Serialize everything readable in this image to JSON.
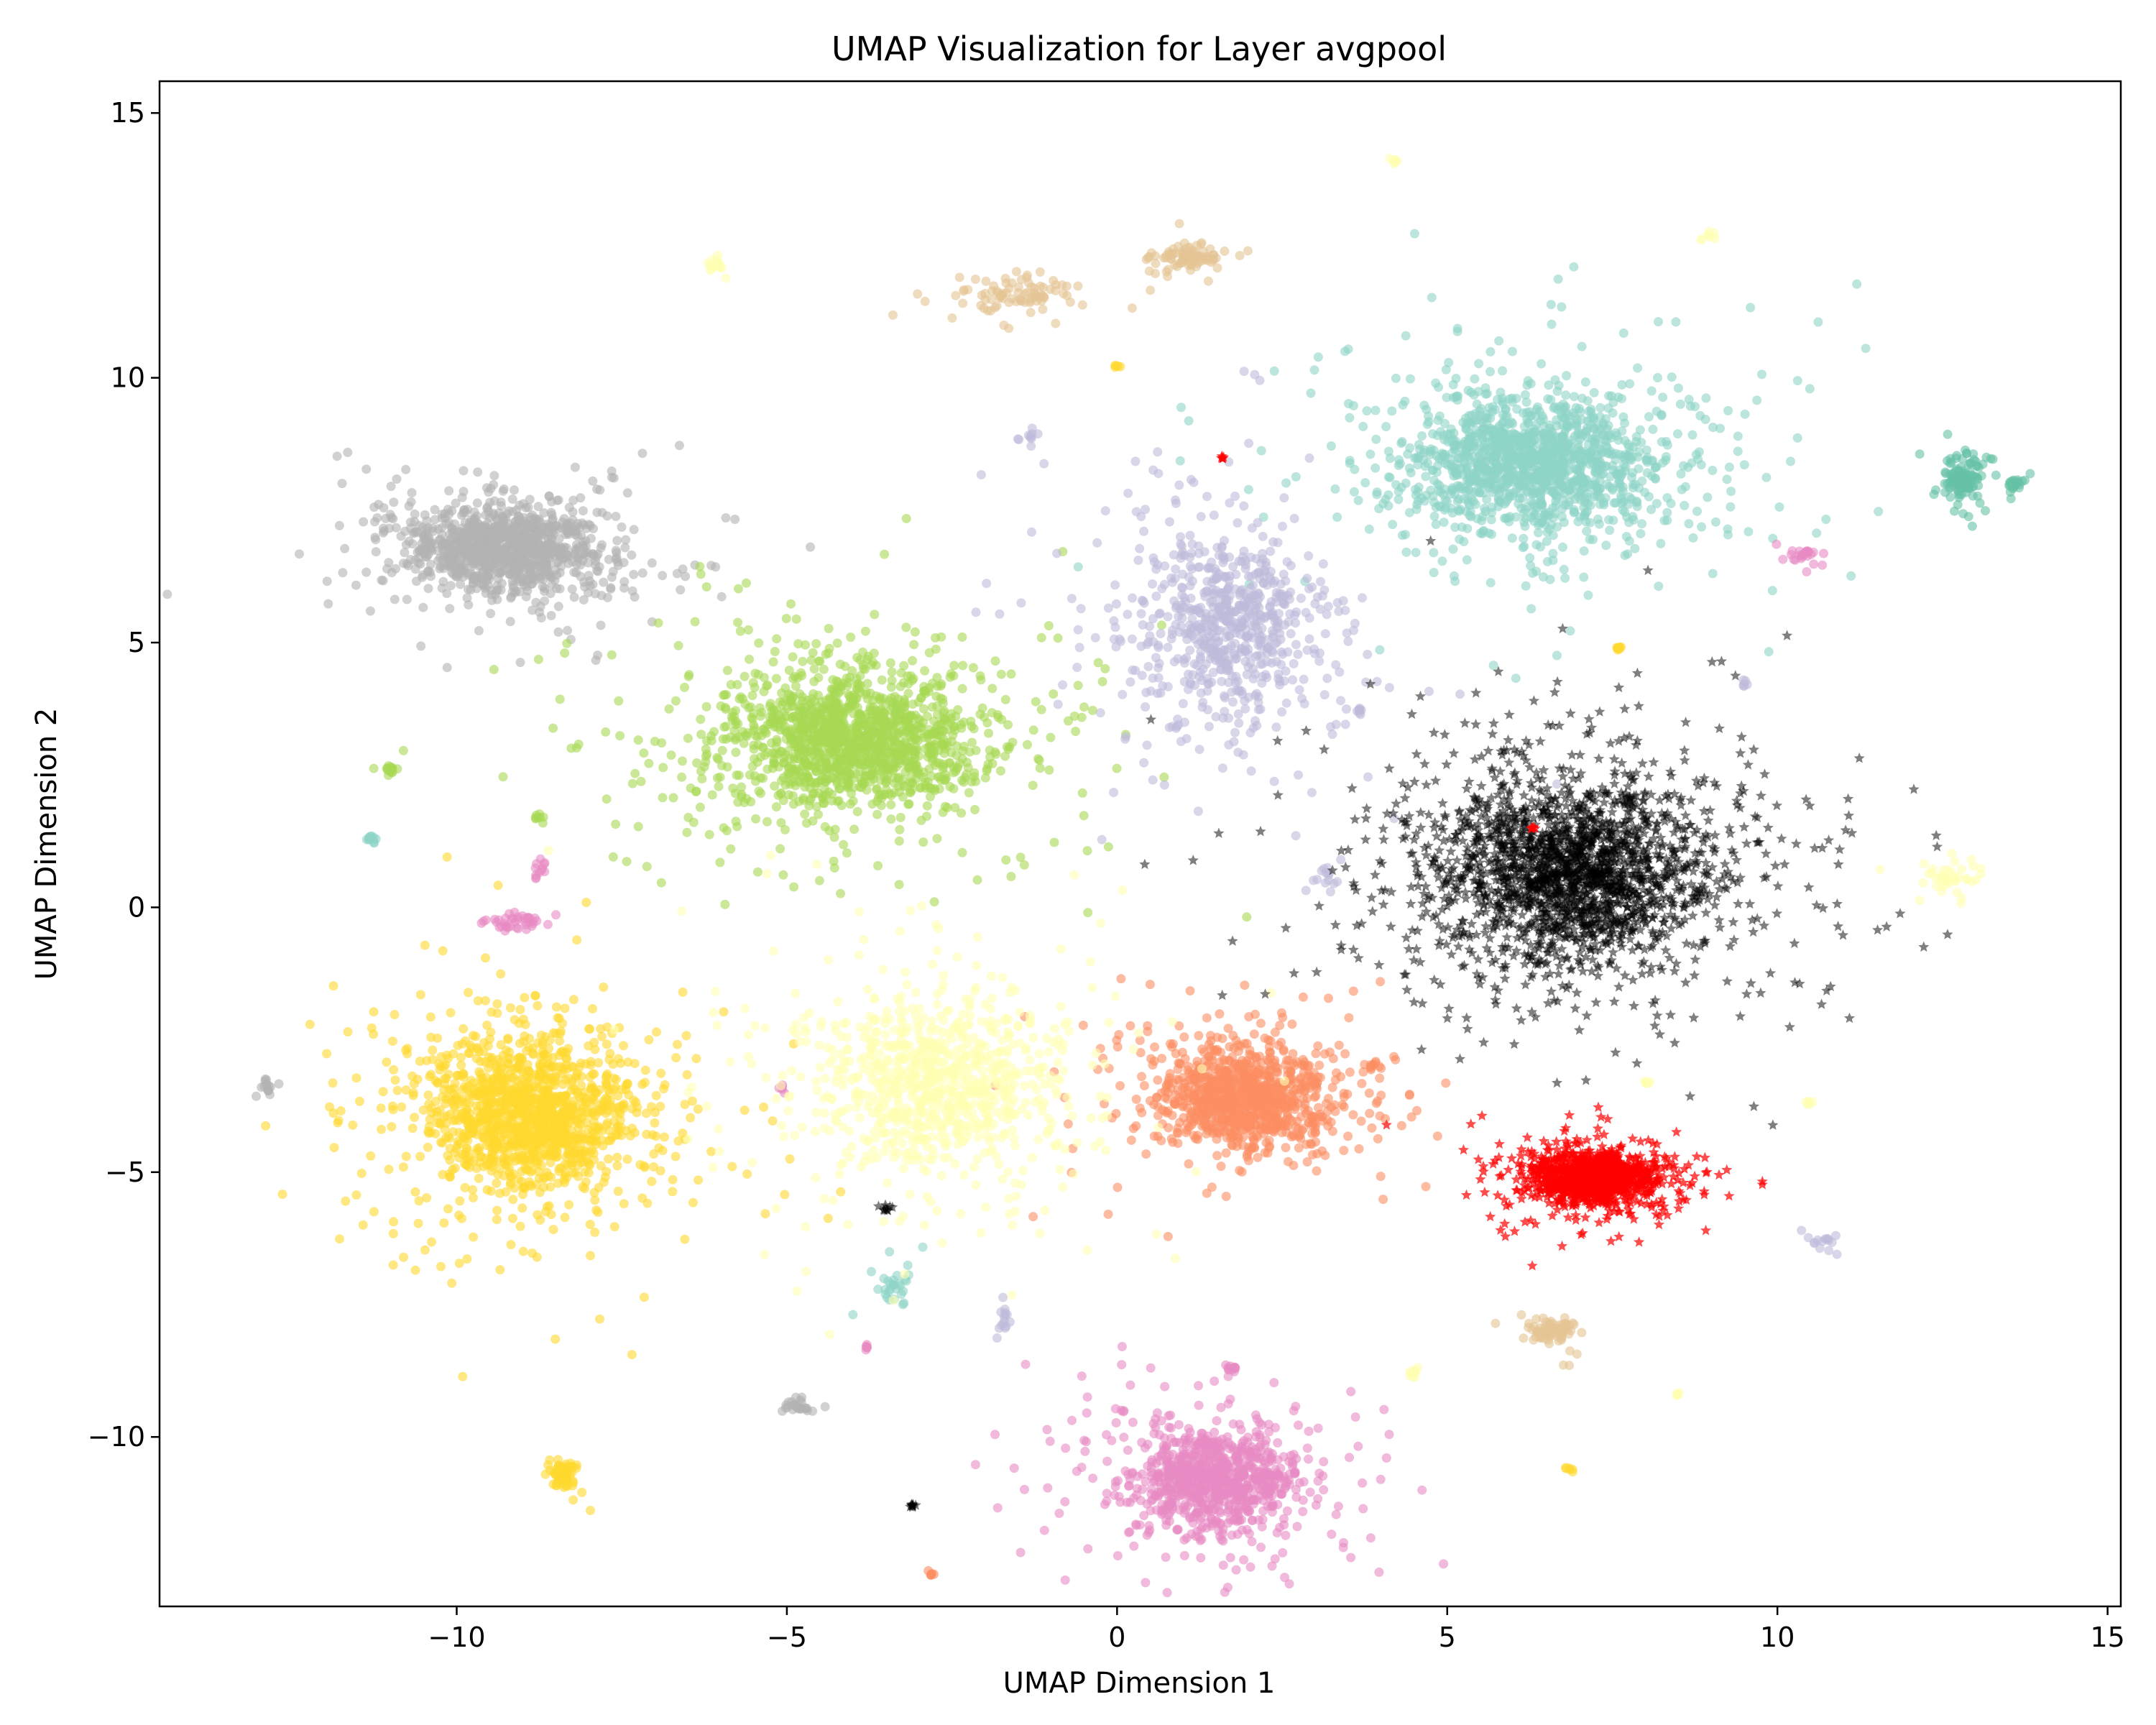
{
  "chart_data": {
    "type": "scatter",
    "title": "UMAP Visualization for Layer avgpool",
    "xlabel": "UMAP Dimension 1",
    "ylabel": "UMAP Dimension 2",
    "xlim": [
      -14.5,
      15.2
    ],
    "ylim": [
      -13.2,
      15.6
    ],
    "x_ticks": [
      -10,
      -5,
      0,
      5,
      10,
      15
    ],
    "y_ticks": [
      -10,
      -5,
      0,
      5,
      10,
      15
    ],
    "x_tick_labels": [
      "−10",
      "−5",
      "0",
      "5",
      "10",
      "15"
    ],
    "y_tick_labels": [
      "−10",
      "−5",
      "0",
      "5",
      "10",
      "15"
    ],
    "grid": false,
    "legend": "none",
    "series": [
      {
        "color": "#8dd3c7",
        "marker": "circle",
        "alpha": 0.6,
        "blobs": [
          [
            6.3,
            8.4,
            1.2,
            0.8,
            1400
          ],
          [
            -11.3,
            1.3,
            0.05,
            0.05,
            12
          ],
          [
            -3.4,
            -7.2,
            0.15,
            0.2,
            30
          ]
        ]
      },
      {
        "color": "#66c2a5",
        "marker": "circle",
        "alpha": 0.6,
        "blobs": [
          [
            12.8,
            8.1,
            0.2,
            0.3,
            120
          ],
          [
            13.6,
            8.0,
            0.1,
            0.05,
            25
          ]
        ]
      },
      {
        "color": "#b3b3b3",
        "marker": "circle",
        "alpha": 0.6,
        "blobs": [
          [
            -9.3,
            6.8,
            0.9,
            0.5,
            1100
          ],
          [
            -12.9,
            -3.4,
            0.05,
            0.1,
            15
          ],
          [
            -4.8,
            -9.4,
            0.15,
            0.1,
            25
          ]
        ]
      },
      {
        "color": "#a6d854",
        "marker": "circle",
        "alpha": 0.6,
        "blobs": [
          [
            -4.0,
            3.2,
            1.2,
            0.8,
            1500
          ],
          [
            -11.0,
            2.6,
            0.05,
            0.05,
            15
          ],
          [
            -8.8,
            1.7,
            0.03,
            0.03,
            6
          ]
        ]
      },
      {
        "color": "#bebada",
        "marker": "circle",
        "alpha": 0.6,
        "blobs": [
          [
            1.7,
            5.3,
            0.9,
            1.2,
            700
          ],
          [
            -1.3,
            8.9,
            0.05,
            0.05,
            10
          ],
          [
            3.2,
            0.5,
            0.1,
            0.2,
            15
          ],
          [
            9.5,
            4.2,
            0.03,
            0.03,
            6
          ],
          [
            -1.7,
            -7.8,
            0.05,
            0.2,
            15
          ],
          [
            10.7,
            -6.3,
            0.1,
            0.1,
            15
          ],
          [
            3.7,
            3.7,
            0.05,
            0.05,
            8
          ]
        ]
      },
      {
        "color": "#e78ac3",
        "marker": "circle",
        "alpha": 0.6,
        "blobs": [
          [
            1.5,
            -10.8,
            0.8,
            0.6,
            900
          ],
          [
            -9.1,
            -0.3,
            0.3,
            0.1,
            40
          ],
          [
            -8.7,
            0.7,
            0.05,
            0.1,
            12
          ],
          [
            10.4,
            6.7,
            0.15,
            0.1,
            25
          ],
          [
            -5.1,
            -3.4,
            0.03,
            0.03,
            6
          ],
          [
            -3.8,
            -8.3,
            0.03,
            0.03,
            6
          ],
          [
            1.7,
            -8.7,
            0.1,
            0.05,
            12
          ]
        ]
      },
      {
        "color": "#fc8d62",
        "marker": "circle",
        "alpha": 0.6,
        "blobs": [
          [
            1.9,
            -3.6,
            0.8,
            0.6,
            1000
          ],
          [
            3.9,
            -3.0,
            0.05,
            0.05,
            10
          ],
          [
            -2.8,
            -12.6,
            0.03,
            0.03,
            6
          ]
        ]
      },
      {
        "color": "#ffd92f",
        "marker": "circle",
        "alpha": 0.6,
        "blobs": [
          [
            -8.9,
            -3.9,
            1.0,
            0.9,
            1400
          ],
          [
            -8.4,
            -10.7,
            0.1,
            0.15,
            80
          ],
          [
            0.0,
            10.2,
            0.02,
            0.02,
            5
          ],
          [
            7.6,
            4.9,
            0.05,
            0.03,
            10
          ],
          [
            6.8,
            -10.6,
            0.03,
            0.03,
            6
          ]
        ]
      },
      {
        "color": "#ffffb3",
        "marker": "circle",
        "alpha": 0.6,
        "blobs": [
          [
            -2.7,
            -3.3,
            1.2,
            1.1,
            900
          ],
          [
            -6.1,
            12.1,
            0.1,
            0.1,
            15
          ],
          [
            4.2,
            14.1,
            0.05,
            0.05,
            8
          ],
          [
            9.0,
            12.7,
            0.05,
            0.05,
            8
          ],
          [
            12.6,
            0.6,
            0.3,
            0.15,
            40
          ],
          [
            10.5,
            -3.7,
            0.03,
            0.03,
            6
          ],
          [
            8.0,
            -3.3,
            0.03,
            0.03,
            6
          ],
          [
            4.5,
            -8.8,
            0.05,
            0.08,
            10
          ],
          [
            8.5,
            -9.2,
            0.03,
            0.03,
            6
          ]
        ]
      },
      {
        "color": "#e5c494",
        "marker": "circle",
        "alpha": 0.6,
        "blobs": [
          [
            -1.6,
            11.6,
            0.6,
            0.25,
            90
          ],
          [
            1.1,
            12.3,
            0.3,
            0.15,
            90
          ],
          [
            6.6,
            -8.0,
            0.2,
            0.15,
            80
          ]
        ]
      },
      {
        "color": "#000000",
        "marker": "star",
        "alpha": 0.5,
        "blobs": [
          [
            6.9,
            0.7,
            1.3,
            1.1,
            2200
          ],
          [
            -3.5,
            -5.7,
            0.05,
            0.03,
            10
          ],
          [
            -3.1,
            -11.3,
            0.05,
            0.03,
            10
          ]
        ]
      },
      {
        "color": "#ff0000",
        "marker": "star",
        "alpha": 0.7,
        "blobs": [
          [
            7.2,
            -5.1,
            0.6,
            0.3,
            1200
          ],
          [
            1.6,
            8.5,
            0.02,
            0.02,
            5
          ],
          [
            6.3,
            1.5,
            0.02,
            0.02,
            5
          ]
        ]
      }
    ]
  }
}
